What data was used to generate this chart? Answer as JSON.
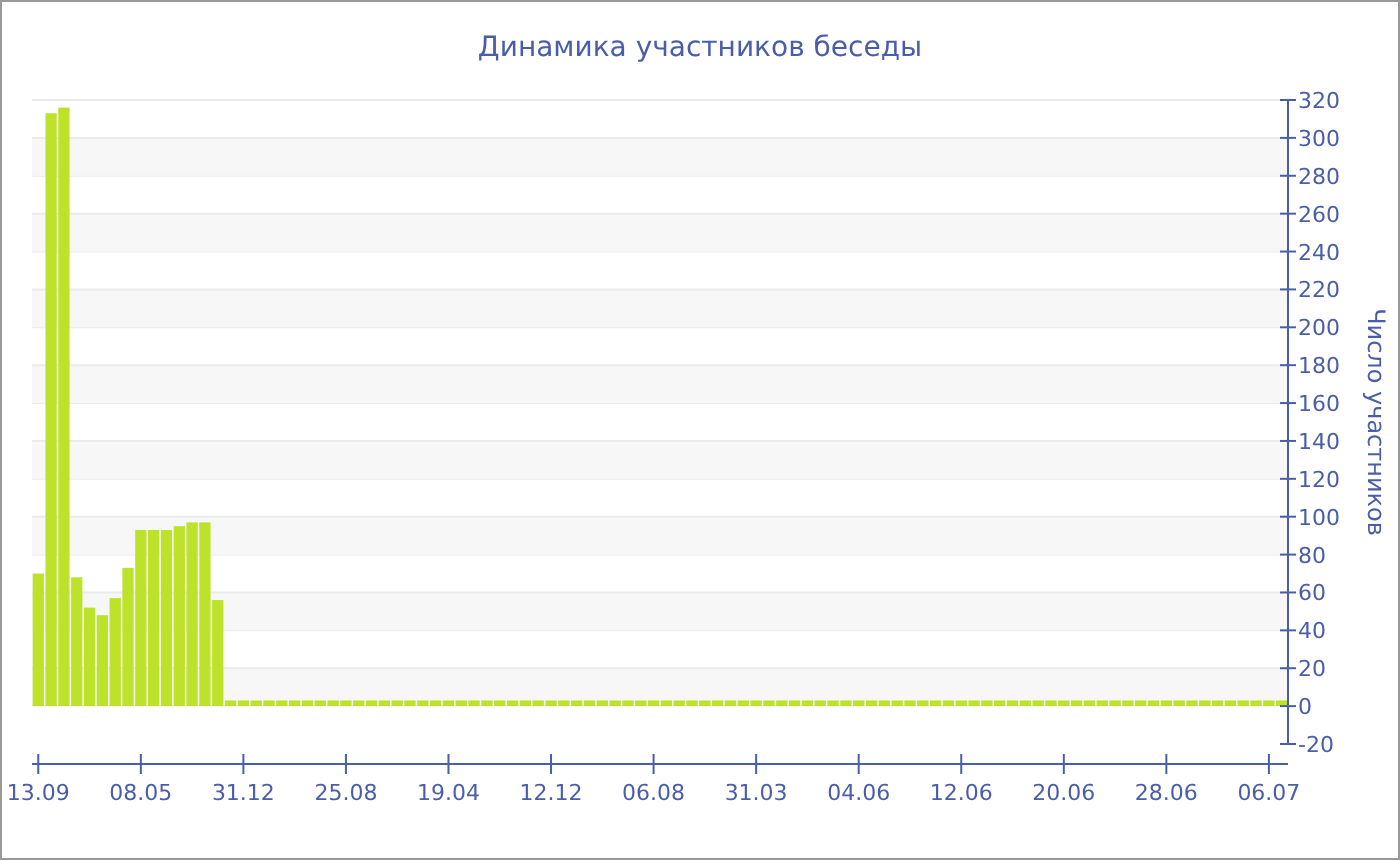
{
  "chart_data": {
    "type": "bar",
    "title": "Динамика участников беседы",
    "ylabel": "Число участников",
    "categories": [
      "13.09",
      null,
      null,
      null,
      null,
      null,
      null,
      null,
      "08.05",
      null,
      null,
      null,
      null,
      null,
      null,
      null,
      "31.12",
      null,
      null,
      null,
      null,
      null,
      null,
      null,
      "25.08",
      null,
      null,
      null,
      null,
      null,
      null,
      null,
      "19.04",
      null,
      null,
      null,
      null,
      null,
      null,
      null,
      "12.12",
      null,
      null,
      null,
      null,
      null,
      null,
      null,
      "06.08",
      null,
      null,
      null,
      null,
      null,
      null,
      null,
      "31.03",
      null,
      null,
      null,
      null,
      null,
      null,
      null,
      "04.06",
      null,
      null,
      null,
      null,
      null,
      null,
      null,
      "12.06",
      null,
      null,
      null,
      null,
      null,
      null,
      null,
      "20.06",
      null,
      null,
      null,
      null,
      null,
      null,
      null,
      "28.06",
      null,
      null,
      null,
      null,
      null,
      null,
      null,
      "06.07",
      null
    ],
    "values": [
      70,
      313,
      316,
      68,
      52,
      48,
      57,
      73,
      93,
      93,
      93,
      95,
      97,
      97,
      56,
      3,
      3,
      3,
      3,
      3,
      3,
      3,
      3,
      3,
      3,
      3,
      3,
      3,
      3,
      3,
      3,
      3,
      3,
      3,
      3,
      3,
      3,
      3,
      3,
      3,
      3,
      3,
      3,
      3,
      3,
      3,
      3,
      3,
      3,
      3,
      3,
      3,
      3,
      3,
      3,
      3,
      3,
      3,
      3,
      3,
      3,
      3,
      3,
      3,
      3,
      3,
      3,
      3,
      3,
      3,
      3,
      3,
      3,
      3,
      3,
      3,
      3,
      3,
      3,
      3,
      3,
      3,
      3,
      3,
      3,
      3,
      3,
      3,
      3,
      3,
      3,
      3,
      3,
      3,
      3,
      3,
      3,
      3
    ],
    "color": "#bde22a",
    "ylim": [
      -20,
      320
    ],
    "yticks": [
      -20,
      0,
      20,
      40,
      60,
      80,
      100,
      120,
      140,
      160,
      180,
      200,
      220,
      240,
      260,
      280,
      300,
      320
    ],
    "grid": "y"
  }
}
